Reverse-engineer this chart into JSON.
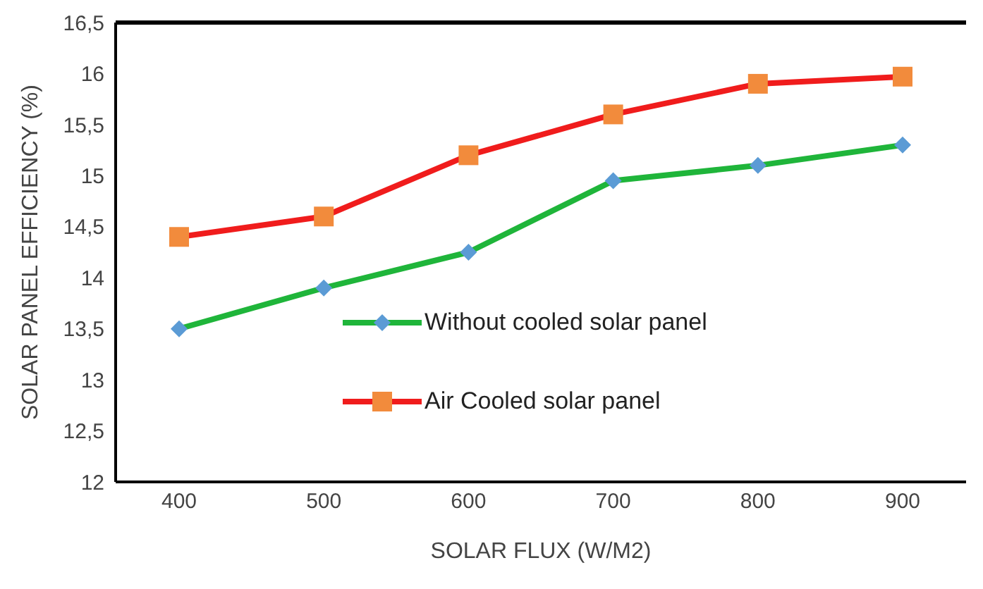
{
  "chart_data": {
    "type": "line",
    "xlabel": "SOLAR FLUX (W/M2)",
    "ylabel": "SOLAR PANEL EFFICIENCY (%)",
    "categories": [
      "400",
      "500",
      "600",
      "700",
      "800",
      "900"
    ],
    "series": [
      {
        "name": "Without cooled solar panel",
        "color": "#1fb53a",
        "values": [
          13.5,
          13.9,
          14.25,
          14.95,
          15.1,
          15.3
        ],
        "marker": "diamond"
      },
      {
        "name": "Air Cooled solar panel",
        "color": "#f01c1c",
        "values": [
          14.4,
          14.6,
          15.2,
          15.6,
          15.9,
          15.97
        ],
        "marker": "square"
      }
    ],
    "ylim": [
      12,
      16.5
    ],
    "yticks": [
      12,
      {
        "value": 12.5,
        "label": "12,5"
      },
      13,
      {
        "value": 13.5,
        "label": "13,5"
      },
      14,
      {
        "value": 14.5,
        "label": "14,5"
      },
      15,
      {
        "value": 15.5,
        "label": "15,5"
      },
      16,
      {
        "value": 16.5,
        "label": "16,5"
      }
    ],
    "grid": false,
    "legend": "bottom",
    "line_style": "solid"
  }
}
